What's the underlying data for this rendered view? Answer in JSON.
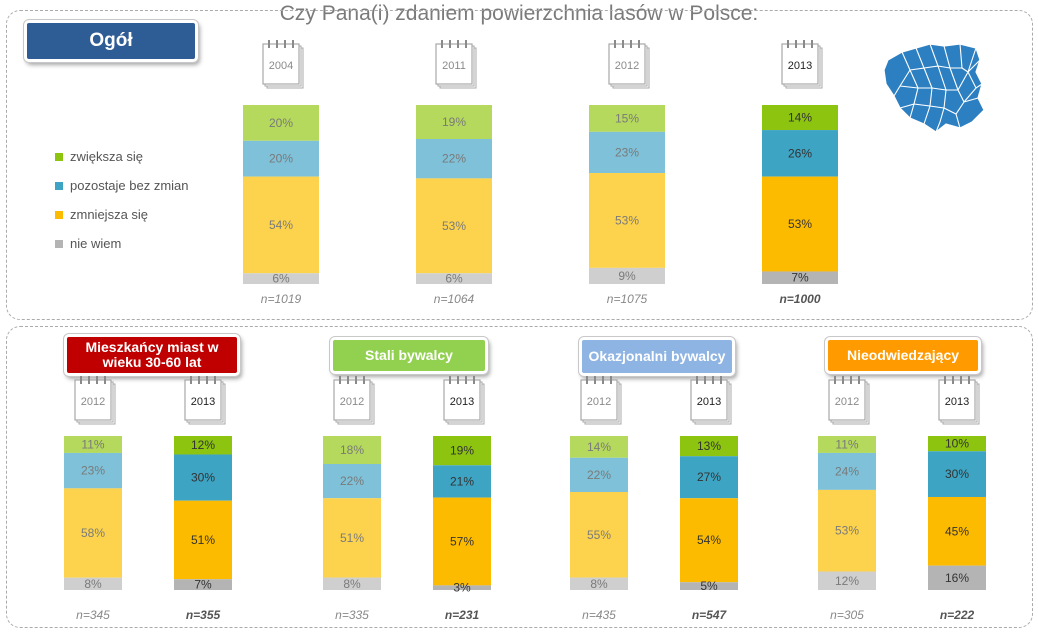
{
  "title": "Czy Pana(i) zdaniem powierzchnia lasów w Polsce:",
  "colors": {
    "green_light": "#b5d95c",
    "green_dark": "#8cc410",
    "blue_light": "#7ec1d8",
    "blue_dark": "#3ea4c3",
    "yellow_light": "#fdd34d",
    "yellow_dark": "#fdbb00",
    "grey_light": "#cfcfcf",
    "grey_dark": "#b4b4b4"
  },
  "header": {
    "ogol_label": "Ogół"
  },
  "legend": [
    {
      "label": "zwiększa się",
      "color": "#8cc410"
    },
    {
      "label": "pozostaje bez zmian",
      "color": "#3ea4c3"
    },
    {
      "label": "zmniejsza się",
      "color": "#fdbb00"
    },
    {
      "label": "nie wiem",
      "color": "#b4b4b4"
    }
  ],
  "groups": [
    {
      "label": "Mieszkańcy miast w wieku 30-60 lat",
      "color": "#c00000"
    },
    {
      "label": "Stali bywalcy",
      "color": "#92d050"
    },
    {
      "label": "Okazjonalni bywalcy",
      "color": "#8eb4e3"
    },
    {
      "label": "Nieodwiedzający",
      "color": "#ff9a00"
    }
  ],
  "chart_data": [
    {
      "type": "bar",
      "stacked": true,
      "title": "Czy Pana(i) zdaniem powierzchnia lasów w Polsce:",
      "panel": "Ogół",
      "categories": [
        "2004",
        "2011",
        "2012",
        "2013"
      ],
      "n_labels": [
        "n=1019",
        "n=1064",
        "n=1075",
        "n=1000"
      ],
      "series": [
        {
          "name": "zwiększa się",
          "values": [
            20,
            19,
            15,
            14
          ]
        },
        {
          "name": "pozostaje bez zmian",
          "values": [
            20,
            22,
            23,
            26
          ]
        },
        {
          "name": "zmniejsza się",
          "values": [
            54,
            53,
            53,
            53
          ]
        },
        {
          "name": "nie wiem",
          "values": [
            6,
            6,
            9,
            7
          ]
        }
      ],
      "ylim": [
        0,
        100
      ]
    },
    {
      "type": "bar",
      "stacked": true,
      "panel": "Mieszkańcy miast w wieku 30-60 lat",
      "categories": [
        "2012",
        "2013"
      ],
      "n_labels": [
        "n=345",
        "n=355"
      ],
      "series": [
        {
          "name": "zwiększa się",
          "values": [
            11,
            12
          ]
        },
        {
          "name": "pozostaje bez zmian",
          "values": [
            23,
            30
          ]
        },
        {
          "name": "zmniejsza się",
          "values": [
            58,
            51
          ]
        },
        {
          "name": "nie wiem",
          "values": [
            8,
            7
          ]
        }
      ],
      "ylim": [
        0,
        100
      ]
    },
    {
      "type": "bar",
      "stacked": true,
      "panel": "Stali bywalcy",
      "categories": [
        "2012",
        "2013"
      ],
      "n_labels": [
        "n=335",
        "n=231"
      ],
      "series": [
        {
          "name": "zwiększa się",
          "values": [
            18,
            19
          ]
        },
        {
          "name": "pozostaje bez zmian",
          "values": [
            22,
            21
          ]
        },
        {
          "name": "zmniejsza się",
          "values": [
            51,
            57
          ]
        },
        {
          "name": "nie wiem",
          "values": [
            8,
            3
          ]
        }
      ],
      "ylim": [
        0,
        100
      ]
    },
    {
      "type": "bar",
      "stacked": true,
      "panel": "Okazjonalni bywalcy",
      "categories": [
        "2012",
        "2013"
      ],
      "n_labels": [
        "n=435",
        "n=547"
      ],
      "series": [
        {
          "name": "zwiększa się",
          "values": [
            14,
            13
          ]
        },
        {
          "name": "pozostaje bez zmian",
          "values": [
            22,
            27
          ]
        },
        {
          "name": "zmniejsza się",
          "values": [
            55,
            54
          ]
        },
        {
          "name": "nie wiem",
          "values": [
            8,
            5
          ]
        }
      ],
      "ylim": [
        0,
        100
      ]
    },
    {
      "type": "bar",
      "stacked": true,
      "panel": "Nieodwiedzający",
      "categories": [
        "2012",
        "2013"
      ],
      "n_labels": [
        "n=305",
        "n=222"
      ],
      "series": [
        {
          "name": "zwiększa się",
          "values": [
            11,
            10
          ]
        },
        {
          "name": "pozostaje bez zmian",
          "values": [
            24,
            30
          ]
        },
        {
          "name": "zmniejsza się",
          "values": [
            53,
            45
          ]
        },
        {
          "name": "nie wiem",
          "values": [
            12,
            16
          ]
        }
      ],
      "ylim": [
        0,
        100
      ]
    }
  ]
}
